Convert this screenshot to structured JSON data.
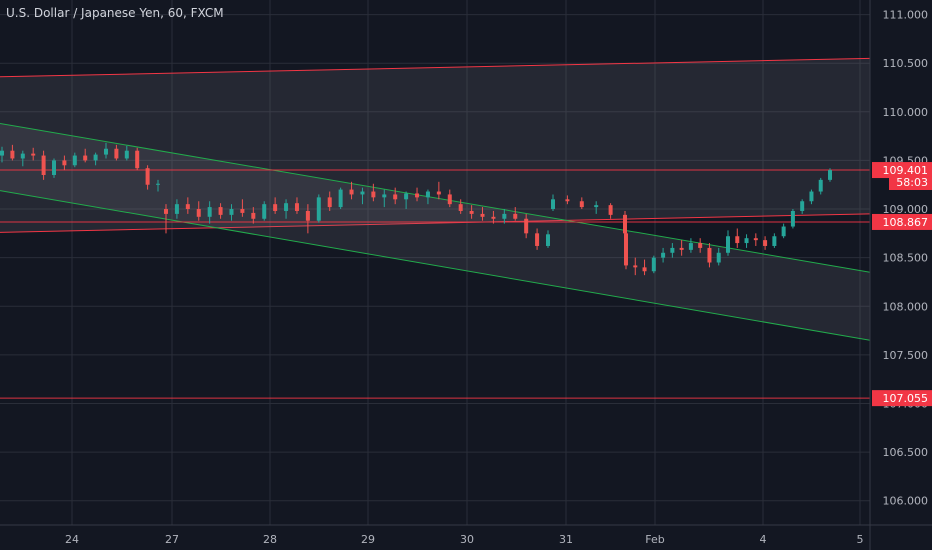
{
  "chart_data": {
    "type": "candlestick",
    "title": "U.S. Dollar / Japanese Yen, 60, FXCM",
    "ylim": [
      105.75,
      111.15
    ],
    "y_ticks": [
      "111.000",
      "110.500",
      "110.000",
      "109.500",
      "109.000",
      "108.500",
      "108.000",
      "107.500",
      "107.000",
      "106.500",
      "106.000"
    ],
    "y_tick_values": [
      111.0,
      110.5,
      110.0,
      109.5,
      109.0,
      108.5,
      108.0,
      107.5,
      107.0,
      106.5,
      106.0
    ],
    "x_ticks": [
      "24",
      "27",
      "28",
      "29",
      "30",
      "31",
      "Feb",
      "4",
      "5"
    ],
    "grid": true,
    "price_labels": [
      {
        "text": "109.401",
        "value": 109.401,
        "color": "#f23645"
      },
      {
        "text": "58:03",
        "value": 109.25,
        "color": "#f23645"
      },
      {
        "text": "108.867",
        "value": 108.867,
        "color": "#f23645"
      },
      {
        "text": "107.055",
        "value": 107.055,
        "color": "#f23645"
      }
    ],
    "horizontal_lines": [
      {
        "value": 109.401,
        "color": "#f23645"
      },
      {
        "value": 108.867,
        "color": "#f23645"
      },
      {
        "value": 107.055,
        "color": "#f23645"
      }
    ],
    "channels": [
      {
        "name": "",
        "color": "#f23645",
        "upper": [
          [
            0,
            110.36
          ],
          [
            870,
            110.55
          ]
        ],
        "lower": [
          [
            0,
            108.76
          ],
          [
            870,
            108.95
          ]
        ]
      },
      {
        "name": "",
        "color": "#22ab4c",
        "upper": [
          [
            0,
            109.88
          ],
          [
            870,
            108.35
          ]
        ],
        "lower": [
          [
            0,
            109.19
          ],
          [
            870,
            107.65
          ]
        ]
      }
    ],
    "series": [
      {
        "values": [
          [
            109.55,
            109.64,
            109.48,
            109.6
          ],
          [
            109.6,
            109.66,
            109.5,
            109.52
          ],
          [
            109.52,
            109.6,
            109.44,
            109.57
          ],
          [
            109.57,
            109.63,
            109.5,
            109.55
          ],
          [
            109.55,
            109.6,
            109.3,
            109.35
          ],
          [
            109.35,
            109.52,
            109.32,
            109.5
          ],
          [
            109.5,
            109.55,
            109.4,
            109.45
          ],
          [
            109.45,
            109.58,
            109.43,
            109.55
          ],
          [
            109.55,
            109.62,
            109.48,
            109.5
          ],
          [
            109.5,
            109.58,
            109.45,
            109.56
          ],
          [
            109.56,
            109.68,
            109.52,
            109.62
          ],
          [
            109.62,
            109.66,
            109.5,
            109.52
          ],
          [
            109.52,
            109.65,
            109.5,
            109.6
          ],
          [
            109.6,
            109.63,
            109.4,
            109.42
          ],
          [
            109.42,
            109.45,
            109.2,
            109.25
          ],
          [
            109.25,
            109.3,
            109.18,
            109.26
          ],
          [
            109.0,
            109.05,
            108.75,
            108.95
          ],
          [
            108.95,
            109.1,
            108.9,
            109.05
          ],
          [
            109.05,
            109.12,
            108.95,
            109.0
          ],
          [
            109.0,
            109.08,
            108.88,
            108.92
          ],
          [
            108.92,
            109.08,
            108.85,
            109.02
          ],
          [
            109.02,
            109.06,
            108.9,
            108.94
          ],
          [
            108.94,
            109.05,
            108.88,
            109.0
          ],
          [
            109.0,
            109.1,
            108.92,
            108.96
          ],
          [
            108.96,
            109.02,
            108.85,
            108.9
          ],
          [
            108.9,
            109.08,
            108.88,
            109.05
          ],
          [
            109.05,
            109.12,
            108.95,
            108.98
          ],
          [
            108.98,
            109.1,
            108.9,
            109.06
          ],
          [
            109.06,
            109.12,
            108.95,
            108.98
          ],
          [
            108.98,
            109.05,
            108.75,
            108.88
          ],
          [
            108.88,
            109.15,
            108.86,
            109.12
          ],
          [
            109.12,
            109.18,
            108.98,
            109.02
          ],
          [
            109.02,
            109.22,
            109.0,
            109.2
          ],
          [
            109.2,
            109.28,
            109.1,
            109.15
          ],
          [
            109.15,
            109.22,
            109.05,
            109.18
          ],
          [
            109.18,
            109.26,
            109.08,
            109.12
          ],
          [
            109.12,
            109.2,
            109.02,
            109.15
          ],
          [
            109.15,
            109.22,
            109.05,
            109.1
          ],
          [
            109.1,
            109.18,
            109.0,
            109.16
          ],
          [
            109.16,
            109.22,
            109.08,
            109.12
          ],
          [
            109.12,
            109.2,
            109.05,
            109.18
          ],
          [
            109.18,
            109.28,
            109.1,
            109.15
          ],
          [
            109.15,
            109.2,
            109.02,
            109.05
          ],
          [
            109.05,
            109.1,
            108.95,
            108.98
          ],
          [
            108.98,
            109.04,
            108.9,
            108.95
          ],
          [
            108.95,
            109.02,
            108.88,
            108.92
          ],
          [
            108.92,
            108.98,
            108.85,
            108.9
          ],
          [
            108.9,
            109.0,
            108.85,
            108.95
          ],
          [
            108.95,
            109.02,
            108.88,
            108.9
          ],
          [
            108.9,
            108.95,
            108.7,
            108.75
          ],
          [
            108.75,
            108.8,
            108.58,
            108.62
          ],
          [
            108.62,
            108.78,
            108.6,
            108.74
          ],
          [
            109.0,
            109.15,
            108.98,
            109.1
          ],
          [
            109.1,
            109.14,
            109.05,
            109.08
          ],
          [
            109.08,
            109.12,
            109.0,
            109.02
          ],
          [
            109.02,
            109.08,
            108.95,
            109.04
          ],
          [
            109.04,
            109.06,
            108.9,
            108.94
          ],
          [
            108.94,
            108.98,
            108.7,
            108.75
          ],
          [
            108.75,
            108.8,
            108.38,
            108.42
          ],
          [
            108.42,
            108.5,
            108.32,
            108.4
          ],
          [
            108.4,
            108.48,
            108.32,
            108.36
          ],
          [
            108.36,
            108.52,
            108.34,
            108.5
          ],
          [
            108.5,
            108.6,
            108.45,
            108.55
          ],
          [
            108.55,
            108.65,
            108.5,
            108.6
          ],
          [
            108.6,
            108.68,
            108.52,
            108.58
          ],
          [
            108.58,
            108.7,
            108.55,
            108.65
          ],
          [
            108.65,
            108.7,
            108.55,
            108.6
          ],
          [
            108.6,
            108.65,
            108.4,
            108.45
          ],
          [
            108.45,
            108.6,
            108.42,
            108.55
          ],
          [
            108.55,
            108.78,
            108.52,
            108.72
          ],
          [
            108.72,
            108.8,
            108.6,
            108.65
          ],
          [
            108.65,
            108.74,
            108.6,
            108.7
          ],
          [
            108.7,
            108.75,
            108.62,
            108.68
          ],
          [
            108.68,
            108.72,
            108.58,
            108.62
          ],
          [
            108.62,
            108.75,
            108.6,
            108.72
          ],
          [
            108.72,
            108.85,
            108.7,
            108.82
          ],
          [
            108.82,
            109.0,
            108.8,
            108.98
          ],
          [
            108.98,
            109.1,
            108.95,
            109.08
          ],
          [
            109.08,
            109.2,
            109.05,
            109.18
          ],
          [
            109.18,
            109.32,
            109.15,
            109.3
          ],
          [
            109.3,
            109.42,
            109.28,
            109.4
          ]
        ]
      }
    ]
  }
}
